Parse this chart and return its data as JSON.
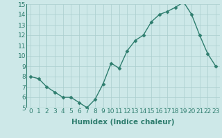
{
  "x": [
    0,
    1,
    2,
    3,
    4,
    5,
    6,
    7,
    8,
    9,
    10,
    11,
    12,
    13,
    14,
    15,
    16,
    17,
    18,
    19,
    20,
    21,
    22,
    23
  ],
  "y": [
    8.0,
    7.8,
    7.0,
    6.5,
    6.0,
    6.0,
    5.5,
    5.0,
    5.8,
    7.3,
    9.3,
    8.8,
    10.5,
    11.5,
    12.0,
    13.3,
    14.0,
    14.3,
    14.7,
    15.2,
    14.0,
    12.0,
    10.2,
    9.0
  ],
  "line_color": "#2e7d6e",
  "marker": "D",
  "markersize": 2.5,
  "linewidth": 1.0,
  "xlabel": "Humidex (Indice chaleur)",
  "xlim": [
    -0.5,
    23.5
  ],
  "ylim": [
    5,
    15
  ],
  "yticks": [
    5,
    6,
    7,
    8,
    9,
    10,
    11,
    12,
    13,
    14,
    15
  ],
  "xticks": [
    0,
    1,
    2,
    3,
    4,
    5,
    6,
    7,
    8,
    9,
    10,
    11,
    12,
    13,
    14,
    15,
    16,
    17,
    18,
    19,
    20,
    21,
    22,
    23
  ],
  "background_color": "#cde8e8",
  "grid_color": "#aacece",
  "tick_fontsize": 6.5,
  "label_fontsize": 7.5
}
